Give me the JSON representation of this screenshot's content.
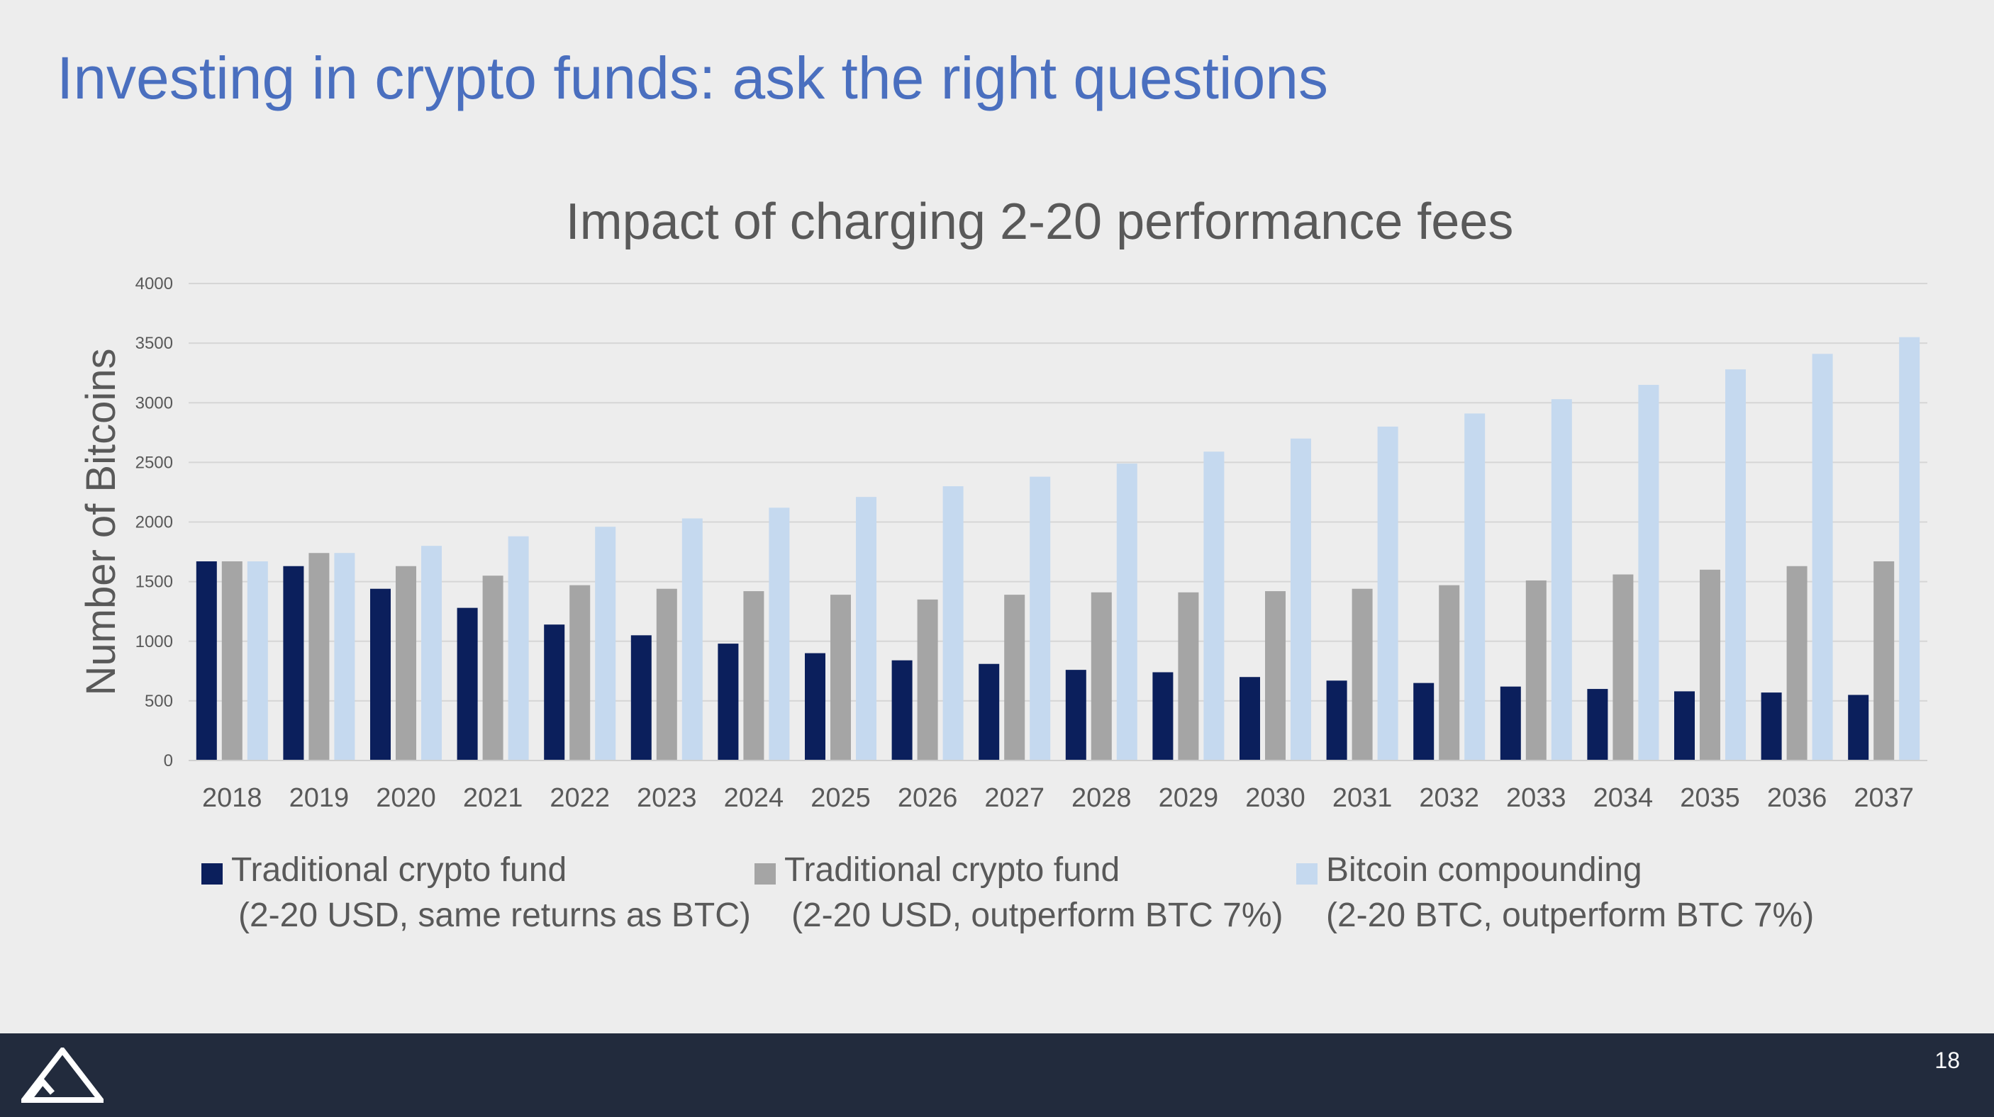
{
  "slide": {
    "title": "Investing in crypto funds: ask the right questions",
    "page_number": "18",
    "logo_icon": "mountain-logo-icon"
  },
  "chart_data": {
    "type": "bar",
    "title": "Impact of charging 2-20 performance fees",
    "xlabel": "",
    "ylabel": "Number of Bitcoins",
    "ylim": [
      0,
      4000
    ],
    "yticks": [
      0,
      500,
      1000,
      1500,
      2000,
      2500,
      3000,
      3500,
      4000
    ],
    "grid": true,
    "legend_position": "bottom",
    "categories": [
      "2018",
      "2019",
      "2020",
      "2021",
      "2022",
      "2023",
      "2024",
      "2025",
      "2026",
      "2027",
      "2028",
      "2029",
      "2030",
      "2031",
      "2032",
      "2033",
      "2034",
      "2035",
      "2036",
      "2037"
    ],
    "series": [
      {
        "name": "Traditional crypto fund",
        "name_line2": "(2-20 USD, same returns as BTC)",
        "color": "#0b1f5c",
        "values": [
          1670,
          1630,
          1440,
          1280,
          1140,
          1050,
          980,
          900,
          840,
          810,
          760,
          740,
          700,
          670,
          650,
          620,
          600,
          580,
          570,
          550
        ]
      },
      {
        "name": "Traditional crypto fund",
        "name_line2": "(2-20 USD, outperform BTC 7%)",
        "color": "#a5a5a5",
        "values": [
          1670,
          1740,
          1630,
          1550,
          1470,
          1440,
          1420,
          1390,
          1350,
          1390,
          1410,
          1410,
          1420,
          1440,
          1470,
          1510,
          1560,
          1600,
          1630,
          1670
        ]
      },
      {
        "name": "Bitcoin compounding",
        "name_line2": "(2-20 BTC, outperform BTC 7%)",
        "color": "#c5d9ef",
        "values": [
          1670,
          1740,
          1800,
          1880,
          1960,
          2030,
          2120,
          2210,
          2300,
          2380,
          2490,
          2590,
          2700,
          2800,
          2910,
          3030,
          3150,
          3280,
          3410,
          3550
        ]
      }
    ]
  }
}
